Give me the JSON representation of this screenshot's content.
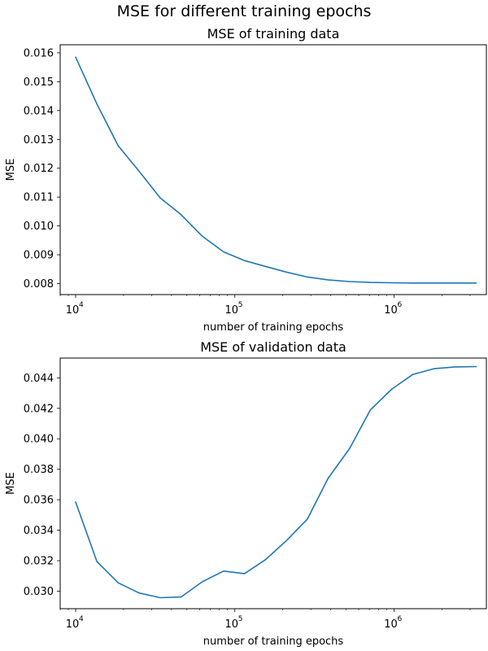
{
  "figure": {
    "suptitle": "MSE for different training epochs"
  },
  "colors": {
    "series": "#1f77b4"
  },
  "chart_data": [
    {
      "type": "line",
      "title": "MSE of training data",
      "xlabel": "number of training epochs",
      "ylabel": "MSE",
      "xscale": "log",
      "xlim": [
        8000,
        3800000
      ],
      "ylim": [
        0.00762,
        0.01628
      ],
      "xticks": [
        {
          "value": 10000,
          "base": "10",
          "exp": "4"
        },
        {
          "value": 100000,
          "base": "10",
          "exp": "5"
        },
        {
          "value": 1000000,
          "base": "10",
          "exp": "6"
        }
      ],
      "yticks": [
        "0.008",
        "0.009",
        "0.010",
        "0.011",
        "0.012",
        "0.013",
        "0.014",
        "0.015",
        "0.016"
      ],
      "grid": false,
      "series": [
        {
          "x": [
            10000,
            13600,
            18500,
            25000,
            34000,
            46000,
            62500,
            85000,
            115000,
            155000,
            210000,
            285000,
            385000,
            525000,
            710000,
            970000,
            1310000,
            1780000,
            2410000,
            3280000
          ],
          "y": [
            0.01585,
            0.01423,
            0.01278,
            0.0119,
            0.01097,
            0.01039,
            0.00964,
            0.0091,
            0.0088,
            0.0086,
            0.0084,
            0.00823,
            0.00813,
            0.00807,
            0.00804,
            0.00803,
            0.00802,
            0.00802,
            0.00802,
            0.00802
          ]
        }
      ]
    },
    {
      "type": "line",
      "title": "MSE of validation data",
      "xlabel": "number of training epochs",
      "ylabel": "MSE",
      "xscale": "log",
      "xlim": [
        8000,
        3800000
      ],
      "ylim": [
        0.02885,
        0.0453
      ],
      "xticks": [
        {
          "value": 10000,
          "base": "10",
          "exp": "4"
        },
        {
          "value": 100000,
          "base": "10",
          "exp": "5"
        },
        {
          "value": 1000000,
          "base": "10",
          "exp": "6"
        }
      ],
      "yticks": [
        "0.030",
        "0.032",
        "0.034",
        "0.036",
        "0.038",
        "0.040",
        "0.042",
        "0.044"
      ],
      "grid": false,
      "series": [
        {
          "x": [
            10000,
            13600,
            18500,
            25000,
            34000,
            46000,
            62500,
            85000,
            115000,
            155000,
            210000,
            285000,
            385000,
            525000,
            710000,
            970000,
            1310000,
            1780000,
            2410000,
            3280000
          ],
          "y": [
            0.03585,
            0.03195,
            0.03055,
            0.02988,
            0.02957,
            0.02962,
            0.03062,
            0.03132,
            0.03115,
            0.03205,
            0.0333,
            0.03472,
            0.0374,
            0.03935,
            0.0419,
            0.04327,
            0.04422,
            0.0446,
            0.04472,
            0.04474
          ]
        }
      ]
    }
  ]
}
